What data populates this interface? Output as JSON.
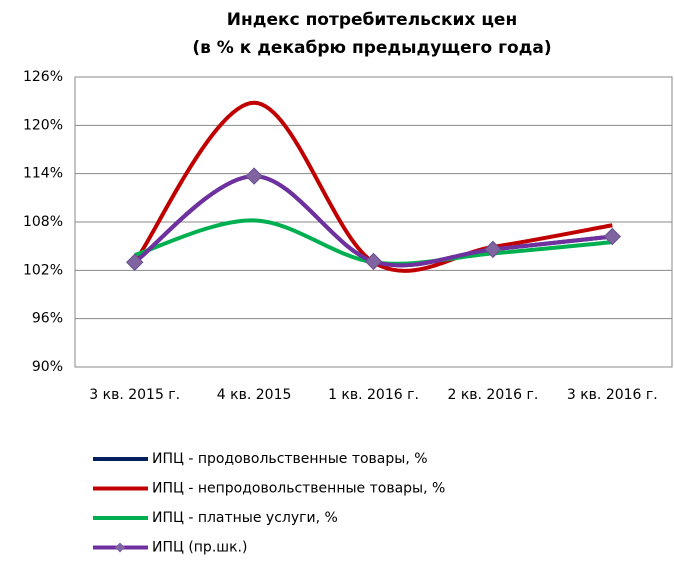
{
  "chart_data": {
    "type": "line",
    "title": "Индекс потребительских цен",
    "subtitle": "(в % к декабрю предыдущего года)",
    "categories": [
      "3 кв. 2015 г.",
      "4 кв. 2015",
      "1 кв. 2016 г.",
      "2 кв. 2016 г.",
      "3 кв. 2016 г."
    ],
    "series": [
      {
        "name": "ИПЦ - продовольственные товары, %",
        "color": "#002060",
        "values": [
          103.0,
          113.7,
          103.1,
          104.6,
          106.2
        ]
      },
      {
        "name": "ИПЦ - непродовольственные товары, %",
        "color": "#c00000",
        "values": [
          103.0,
          122.8,
          103.0,
          104.9,
          107.6
        ]
      },
      {
        "name": "ИПЦ - платные услуги, %",
        "color": "#00b050",
        "values": [
          103.9,
          108.2,
          103.0,
          104.1,
          105.5
        ]
      },
      {
        "name": "ИПЦ (пр.шк.)",
        "color": "#7030a0",
        "values": [
          103.0,
          113.7,
          103.1,
          104.6,
          106.2
        ],
        "marker": "diamond"
      }
    ],
    "ylim": [
      90,
      126
    ],
    "yticks": [
      {
        "value": 90,
        "label": "90%"
      },
      {
        "value": 96,
        "label": "96%"
      },
      {
        "value": 102,
        "label": "102%"
      },
      {
        "value": 108,
        "label": "108%"
      },
      {
        "value": 114,
        "label": "114%"
      },
      {
        "value": 120,
        "label": "120%"
      },
      {
        "value": 126,
        "label": "126%"
      }
    ],
    "grid": true,
    "smooth": true,
    "legend": "bottom-left"
  }
}
